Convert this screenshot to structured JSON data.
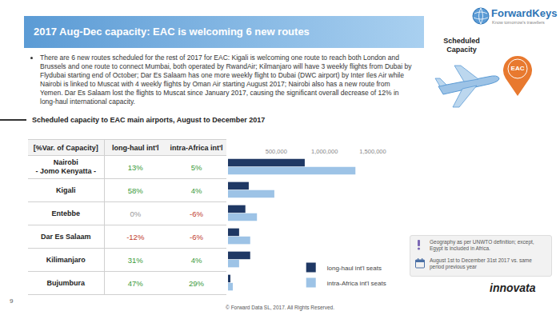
{
  "header": {
    "title": "2017 Aug-Dec capacity: EAC is welcoming 6 new routes"
  },
  "logo": {
    "name": "ForwardKeys",
    "tagline": "Know tomorrow's travellers"
  },
  "badge": {
    "label": "Scheduled Capacity",
    "pin": "EAC"
  },
  "bullets": [
    "There are 6 new routes scheduled for the rest of 2017 for EAC: Kigali is welcoming one route to reach both London and Brussels and one route to connect Mumbai, both operated by RwandAir; Kilmanjaro will have 3 weekly flights from Dubai by Flydubai starting end of October; Dar Es Salaam has one more weekly flight to Dubai (DWC airport) by Inter Iles Air while Nairobi is linked to Muscat with 4 weekly flights by Oman Air starting August 2017; Nairobi also has a new route from Yemen. Dar Es Salaam lost the flights to Muscat since January 2017, causing the significant overall decrease of 12% in long-haul international capacity."
  ],
  "subtitle": "Scheduled capacity to EAC main airports, August to December 2017",
  "table": {
    "header": [
      "[%Var. of Capacity]",
      "long-haul int'l",
      "intra-Africa int'l"
    ],
    "rows": [
      [
        "Nairobi\n- Jomo Kenyatta -",
        "13%",
        "5%"
      ],
      [
        "Kigali",
        "58%",
        "4%"
      ],
      [
        "Entebbe",
        "0%",
        "-6%"
      ],
      [
        "Dar Es Salaam",
        "-12%",
        "-6%"
      ],
      [
        "Kilimanjaro",
        "31%",
        "4%"
      ],
      [
        "Bujumbura",
        "47%",
        "29%"
      ]
    ]
  },
  "chart_data": {
    "type": "bar",
    "orientation": "horizontal",
    "categories": [
      "Nairobi\n- Jomo Kenyatta -",
      "Kigali",
      "Entebbe",
      "Dar Es Salaam",
      "Kilimanjaro",
      "Bujumbura"
    ],
    "series": [
      {
        "name": "long-haul int'l seats",
        "color": "#1f3864",
        "values": [
          795000,
          215000,
          180000,
          115000,
          230000,
          25000
        ]
      },
      {
        "name": "intra-Africa int'l seats",
        "color": "#9dc3e6",
        "values": [
          1320000,
          480000,
          300000,
          230000,
          115000,
          50000
        ]
      }
    ],
    "xlim": [
      0,
      1500000
    ],
    "xticks": [
      0,
      {
        "value": 500000,
        "label": "500,000"
      },
      {
        "value": 1000000,
        "label": "1,000,000"
      },
      {
        "value": 1500000,
        "label": "1,500,000"
      }
    ],
    "grid": false,
    "legend": "lower right",
    "tick_labels": "x"
  },
  "notes": [
    "Geography as per UNWTO definition; except, Egypt is included in Africa.",
    "August 1st to December 31st 2017 vs. same period previous year"
  ],
  "source_logo": "innovata",
  "page": "9",
  "footer": "© Forward Data SL, 2017. All Rights Reserved."
}
